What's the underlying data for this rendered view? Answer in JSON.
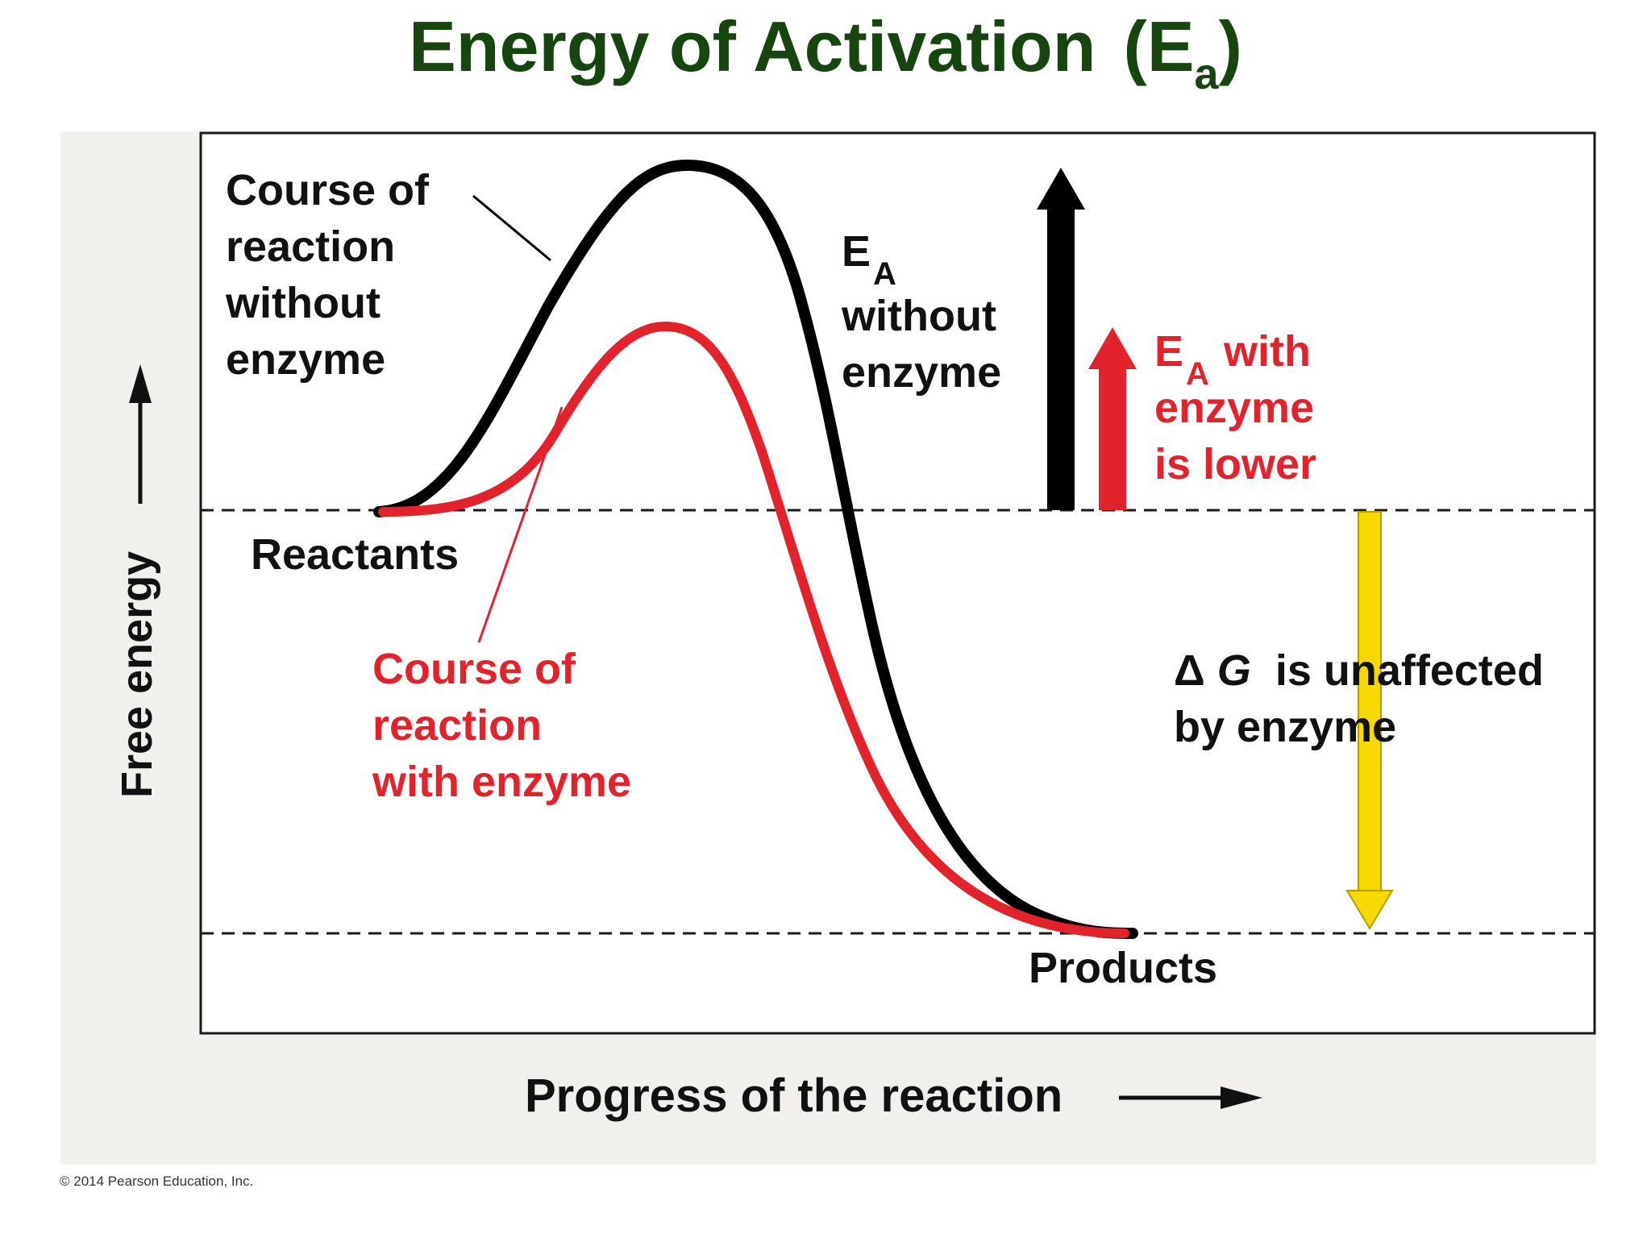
{
  "title": {
    "main": "Energy of Activation",
    "paren_open": "(",
    "symbol": "E",
    "subscript": "a",
    "paren_close": ")"
  },
  "axes": {
    "y_label": "Free energy",
    "x_label": "Progress of the reaction"
  },
  "labels": {
    "reactants": "Reactants",
    "products": "Products",
    "without_enzyme_lines": [
      "Course of",
      "reaction",
      "without",
      "enzyme"
    ],
    "with_enzyme_lines": [
      "Course of",
      "reaction",
      "with enzyme"
    ],
    "ea_without": {
      "symbol": "E",
      "subscript": "A",
      "lines": [
        "without",
        "enzyme"
      ]
    },
    "ea_with": {
      "symbol": "E",
      "subscript": "A",
      "suffix": " with",
      "lines": [
        "enzyme",
        "is lower"
      ]
    },
    "delta_g": {
      "symbol": "Δ",
      "variable": "G",
      "rest": " is unaffected",
      "line2": "by enzyme"
    }
  },
  "copyright": "© 2014 Pearson Education, Inc.",
  "colors": {
    "title": "#17450f",
    "without_enzyme_curve": "#000000",
    "with_enzyme_curve": "#e3232c",
    "delta_g_arrow": "#f7d800",
    "panel_background": "#f1f0ec"
  }
}
